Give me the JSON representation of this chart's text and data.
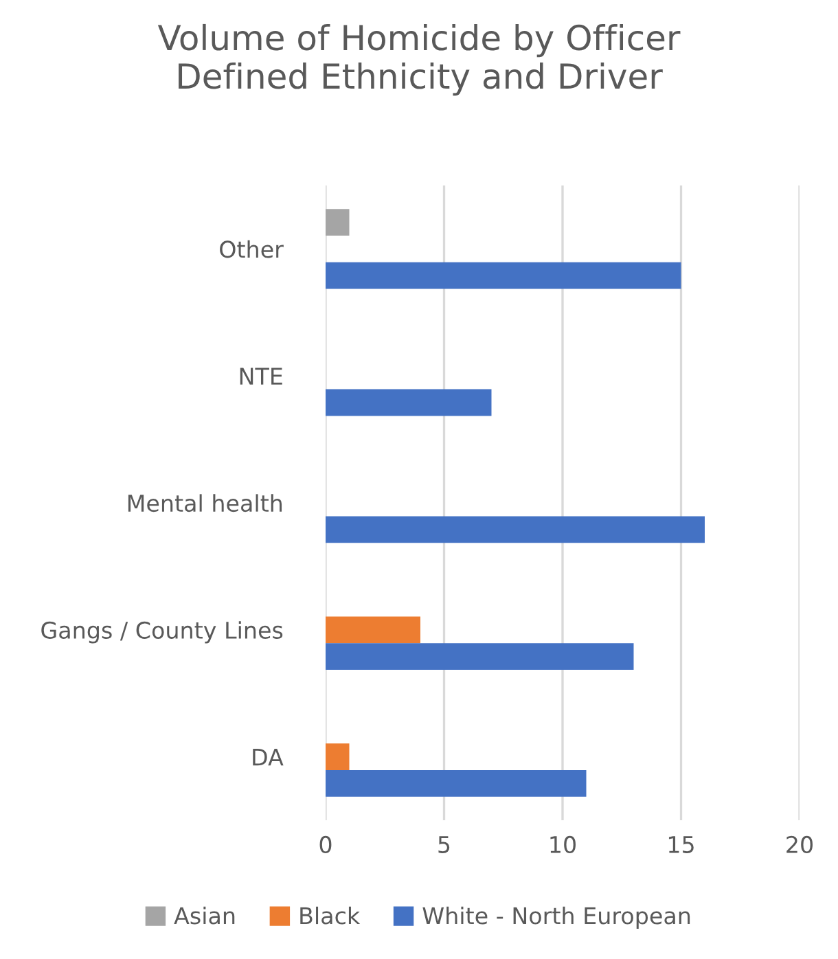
{
  "chart_data": {
    "type": "bar",
    "orientation": "horizontal",
    "title": "Volume of Homicide by Officer\nDefined Ethnicity and Driver",
    "categories": [
      "Other",
      "NTE",
      "Mental health",
      "Gangs / County Lines",
      "DA"
    ],
    "series": [
      {
        "name": "Asian",
        "color": "#a5a5a5",
        "values": [
          1,
          null,
          null,
          null,
          null
        ]
      },
      {
        "name": "Black",
        "color": "#ed7d31",
        "values": [
          null,
          null,
          null,
          4,
          1
        ]
      },
      {
        "name": "White - North European",
        "color": "#4472c4",
        "values": [
          15,
          7,
          16,
          13,
          11
        ]
      }
    ],
    "xlim": [
      0,
      20
    ],
    "xticks": [
      0,
      5,
      10,
      15,
      20
    ],
    "grid": "x",
    "legend": "bottom"
  }
}
